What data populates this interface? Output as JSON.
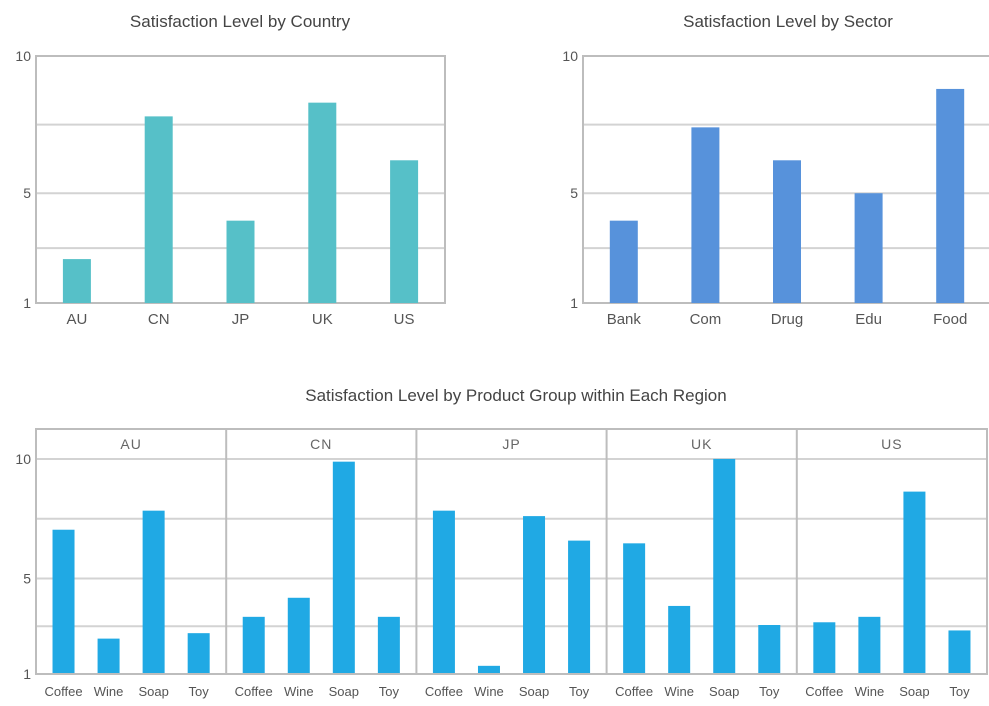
{
  "chart_data": [
    {
      "type": "bar",
      "title": "Satisfaction Level by Country",
      "categories": [
        "AU",
        "CN",
        "JP",
        "UK",
        "US"
      ],
      "values": [
        2.6,
        7.8,
        4.0,
        8.3,
        6.2
      ],
      "ylim": [
        1,
        10
      ],
      "yticks": [
        1,
        5,
        10
      ],
      "grid": true,
      "color": "#56c0c8"
    },
    {
      "type": "bar",
      "title": "Satisfaction Level by Sector",
      "categories": [
        "Bank",
        "Com",
        "Drug",
        "Edu",
        "Food"
      ],
      "values": [
        4.0,
        7.4,
        6.2,
        5.0,
        8.8
      ],
      "ylim": [
        1,
        10
      ],
      "yticks": [
        1,
        5,
        10
      ],
      "grid": true,
      "color": "#5792db"
    },
    {
      "type": "bar",
      "title": "Satisfaction Level by Product Group within Each Region",
      "panels": [
        "AU",
        "CN",
        "JP",
        "UK",
        "US"
      ],
      "categories": [
        "Coffee",
        "Wine",
        "Soap",
        "Toy"
      ],
      "series": [
        {
          "panel": "AU",
          "values": [
            6.3,
            2.3,
            7.0,
            2.5
          ]
        },
        {
          "panel": "CN",
          "values": [
            3.1,
            3.8,
            8.8,
            3.1
          ]
        },
        {
          "panel": "JP",
          "values": [
            7.0,
            1.3,
            6.8,
            5.9
          ]
        },
        {
          "panel": "UK",
          "values": [
            5.8,
            3.5,
            8.9,
            2.8
          ]
        },
        {
          "panel": "US",
          "values": [
            2.9,
            3.1,
            7.7,
            2.6
          ]
        }
      ],
      "ylim": [
        1,
        10
      ],
      "yticks": [
        1,
        5,
        10
      ],
      "grid": true,
      "color": "#20a9e4"
    }
  ]
}
